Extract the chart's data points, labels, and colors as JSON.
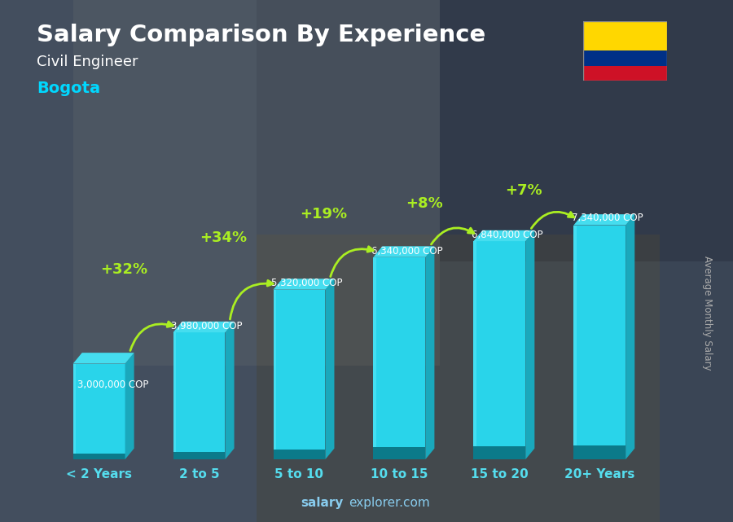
{
  "title": "Salary Comparison By Experience",
  "subtitle": "Civil Engineer",
  "city": "Bogota",
  "categories": [
    "< 2 Years",
    "2 to 5",
    "5 to 10",
    "10 to 15",
    "15 to 20",
    "20+ Years"
  ],
  "values": [
    3000000,
    3980000,
    5320000,
    6340000,
    6840000,
    7340000
  ],
  "labels": [
    "3,000,000 COP",
    "3,980,000 COP",
    "5,320,000 COP",
    "6,340,000 COP",
    "6,840,000 COP",
    "7,340,000 COP"
  ],
  "pct_labels": [
    "+32%",
    "+34%",
    "+19%",
    "+8%",
    "+7%"
  ],
  "bar_face_color": "#29d4ea",
  "bar_side_color": "#1aa8bc",
  "bar_top_color": "#45ddef",
  "bar_dark_bottom": "#0b7a8a",
  "bg_color": "#3a4a5a",
  "title_color": "#ffffff",
  "subtitle_color": "#ffffff",
  "city_color": "#00d8ff",
  "label_color": "#ffffff",
  "pct_color": "#aaee22",
  "xtick_color": "#55ddee",
  "watermark_bold": "salary",
  "watermark_regular": "explorer.com",
  "ylabel_text": "Average Monthly Salary",
  "ylim": [
    0,
    9000000
  ],
  "flag_yellow": "#FFD700",
  "flag_blue": "#003087",
  "flag_red": "#CE1126",
  "arrow_color": "#aaee22"
}
